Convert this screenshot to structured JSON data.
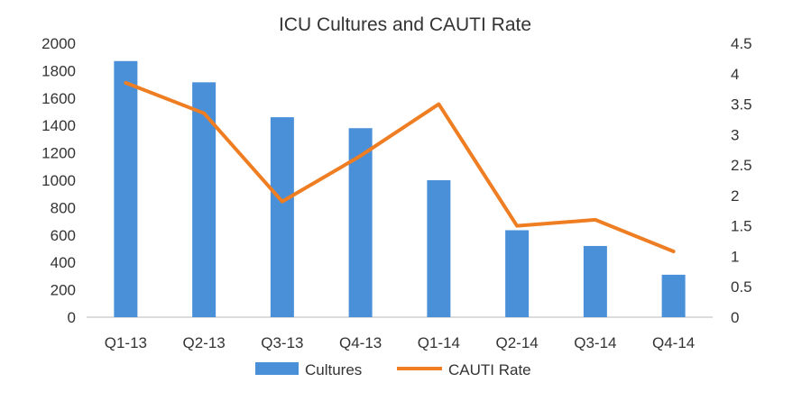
{
  "chart_data": {
    "type": "bar+line",
    "title": "ICU Cultures and CAUTI Rate",
    "categories": [
      "Q1-13",
      "Q2-13",
      "Q3-13",
      "Q4-13",
      "Q1-14",
      "Q2-14",
      "Q3-14",
      "Q4-14"
    ],
    "series": [
      {
        "name": "Cultures",
        "type": "bar",
        "axis": "left",
        "color": "#4a90d9",
        "values": [
          1870,
          1715,
          1460,
          1380,
          1000,
          635,
          520,
          310
        ]
      },
      {
        "name": "CAUTI Rate",
        "type": "line",
        "axis": "right",
        "color": "#ef7d22",
        "values": [
          3.85,
          3.35,
          1.9,
          2.65,
          3.5,
          1.5,
          1.6,
          1.08
        ]
      }
    ],
    "y_left": {
      "min": 0,
      "max": 2000,
      "ticks": [
        "0",
        "200",
        "400",
        "600",
        "800",
        "1000",
        "1200",
        "1400",
        "1600",
        "1800",
        "2000"
      ]
    },
    "y_right": {
      "min": 0,
      "max": 4.5,
      "ticks": [
        "0",
        "0.5",
        "1",
        "1.5",
        "2",
        "2.5",
        "3",
        "3.5",
        "4",
        "4.5"
      ]
    },
    "grid": false,
    "legend_position": "bottom"
  }
}
